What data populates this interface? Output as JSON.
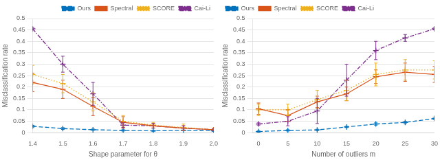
{
  "chart_data": [
    {
      "type": "line",
      "xlabel": "Shape parameter for θ",
      "ylabel": "Misclassification rate",
      "x": [
        1.4,
        1.5,
        1.6,
        1.7,
        1.8,
        1.9,
        2.0
      ],
      "xlim": [
        1.4,
        2.0
      ],
      "ylim": [
        0.0,
        0.5
      ],
      "xticks": [
        1.4,
        1.5,
        1.6,
        1.7,
        1.8,
        1.9,
        {
          "value": 2.0,
          "label": "2.0"
        }
      ],
      "yticks": [
        0,
        0.05,
        0.1,
        0.15,
        0.2,
        0.25,
        0.3,
        0.35,
        0.4,
        0.45,
        0.5
      ],
      "grid": "y",
      "legend": "upper right",
      "series": [
        {
          "name": "Ours",
          "color": "#0072BD",
          "line_style": "dashed",
          "marker": "plus",
          "values": [
            0.028,
            0.018,
            0.013,
            0.01,
            0.008,
            0.01,
            0.008
          ],
          "yerr": [
            0.004,
            0.004,
            0.003,
            0.003,
            0.002,
            0.002,
            0.002
          ]
        },
        {
          "name": "Spectral",
          "color": "#D95319",
          "line_style": "solid",
          "marker": "plus",
          "values": [
            0.22,
            0.19,
            0.115,
            0.045,
            0.03,
            0.02,
            0.013
          ],
          "yerr": [
            0.04,
            0.04,
            0.04,
            0.025,
            0.01,
            0.01,
            0.005
          ]
        },
        {
          "name": "SCORE",
          "color": "#EDB120",
          "line_style": "dotted",
          "marker": "plus",
          "values": [
            0.255,
            0.215,
            0.135,
            0.05,
            0.033,
            0.023,
            0.013
          ],
          "yerr": [
            0.04,
            0.04,
            0.04,
            0.025,
            0.012,
            0.015,
            0.005
          ]
        },
        {
          "name": "Cai-Li",
          "color": "#7E2F8E",
          "line_style": "dashdot",
          "marker": "plus",
          "values": [
            0.455,
            0.3,
            0.17,
            0.033,
            0.03,
            0.02,
            0.013
          ],
          "yerr": [
            0.005,
            0.035,
            0.05,
            0.01,
            0.01,
            0.01,
            0.005
          ]
        }
      ]
    },
    {
      "type": "line",
      "xlabel": "Number of outliers m",
      "ylabel": "Misclassification rate",
      "x": [
        0,
        5,
        10,
        15,
        20,
        25,
        30
      ],
      "xlim": [
        -1,
        30
      ],
      "ylim": [
        0.0,
        0.5
      ],
      "xticks": [
        0,
        5,
        10,
        15,
        20,
        25,
        30
      ],
      "yticks": [
        0,
        0.05,
        0.1,
        0.15,
        0.2,
        0.25,
        0.3,
        0.35,
        0.4,
        0.45,
        0.5
      ],
      "grid": "y",
      "legend": "upper left",
      "series": [
        {
          "name": "Ours",
          "color": "#0072BD",
          "line_style": "dashed",
          "marker": "plus",
          "values": [
            0.005,
            0.01,
            0.012,
            0.025,
            0.038,
            0.045,
            0.062
          ],
          "yerr": [
            0.003,
            0.003,
            0.003,
            0.003,
            0.005,
            0.005,
            0.005
          ]
        },
        {
          "name": "Spectral",
          "color": "#D95319",
          "line_style": "solid",
          "marker": "plus",
          "values": [
            0.105,
            0.075,
            0.135,
            0.17,
            0.245,
            0.265,
            0.255
          ],
          "yerr": [
            0.025,
            0.025,
            0.025,
            0.03,
            0.03,
            0.04,
            0.035
          ]
        },
        {
          "name": "SCORE",
          "color": "#EDB120",
          "line_style": "dotted",
          "marker": "plus",
          "values": [
            0.1,
            0.1,
            0.145,
            0.185,
            0.255,
            0.275,
            0.275
          ],
          "yerr": [
            0.025,
            0.025,
            0.04,
            0.045,
            0.05,
            0.045,
            0.04
          ]
        },
        {
          "name": "Cai-Li",
          "color": "#7E2F8E",
          "line_style": "dashdot",
          "marker": "plus",
          "values": [
            0.038,
            0.05,
            0.095,
            0.23,
            0.36,
            0.415,
            0.455
          ],
          "yerr": [
            0.005,
            0.02,
            0.055,
            0.07,
            0.04,
            0.015,
            0.005
          ]
        }
      ]
    }
  ]
}
